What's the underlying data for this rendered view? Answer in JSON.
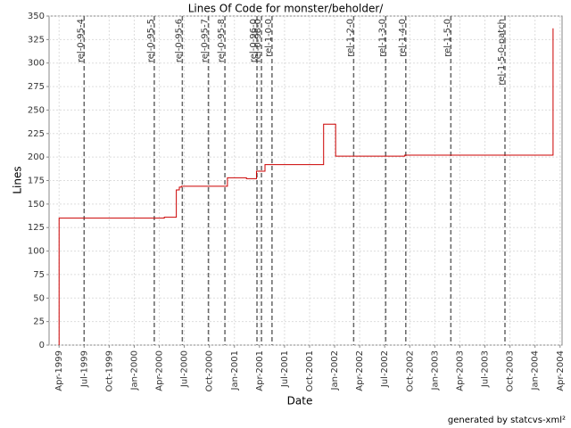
{
  "chart_data": {
    "type": "step-line",
    "title": "Lines Of Code for monster/beholder/",
    "x_label": "Date",
    "y_label": "Lines",
    "footer": "generated by statcvs-xml²",
    "x": [
      1999.25,
      1999.25,
      2000.3,
      2000.42,
      2000.45,
      2000.47,
      2000.93,
      2001.12,
      2001.22,
      2001.305,
      2001.89,
      2002.01,
      2002.7,
      2004.18
    ],
    "values": [
      0,
      135,
      136,
      165,
      168,
      169,
      178,
      177,
      185,
      192,
      235,
      201,
      202,
      337
    ],
    "color": "#cc0000",
    "xlim": [
      1999.15,
      2004.27
    ],
    "xticks": [
      {
        "value": 1999.25,
        "label": "Apr-1999"
      },
      {
        "value": 1999.5,
        "label": "Jul-1999"
      },
      {
        "value": 1999.75,
        "label": "Oct-1999"
      },
      {
        "value": 2000.0,
        "label": "Jan-2000"
      },
      {
        "value": 2000.25,
        "label": "Apr-2000"
      },
      {
        "value": 2000.5,
        "label": "Jul-2000"
      },
      {
        "value": 2000.75,
        "label": "Oct-2000"
      },
      {
        "value": 2001.0,
        "label": "Jan-2001"
      },
      {
        "value": 2001.25,
        "label": "Apr-2001"
      },
      {
        "value": 2001.5,
        "label": "Jul-2001"
      },
      {
        "value": 2001.75,
        "label": "Oct-2001"
      },
      {
        "value": 2002.0,
        "label": "Jan-2002"
      },
      {
        "value": 2002.25,
        "label": "Apr-2002"
      },
      {
        "value": 2002.5,
        "label": "Jul-2002"
      },
      {
        "value": 2002.75,
        "label": "Oct-2002"
      },
      {
        "value": 2003.0,
        "label": "Jan-2003"
      },
      {
        "value": 2003.25,
        "label": "Apr-2003"
      },
      {
        "value": 2003.5,
        "label": "Jul-2003"
      },
      {
        "value": 2003.75,
        "label": "Oct-2003"
      },
      {
        "value": 2004.0,
        "label": "Jan-2004"
      },
      {
        "value": 2004.25,
        "label": "Apr-2004"
      }
    ],
    "ylim": [
      0,
      350
    ],
    "yticks": [
      0,
      25,
      50,
      75,
      100,
      125,
      150,
      175,
      200,
      225,
      250,
      275,
      300,
      325,
      350
    ],
    "grid": true,
    "markers": [
      {
        "label": "rel-0-95-4",
        "x": 1999.5
      },
      {
        "label": "rel-0-95-5",
        "x": 2000.2
      },
      {
        "label": "rel-0-95-6",
        "x": 2000.48
      },
      {
        "label": "rel-0-95-7",
        "x": 2000.74
      },
      {
        "label": "rel-0-95-8",
        "x": 2000.905
      },
      {
        "label": "rel-0-96-0",
        "x": 2001.225
      },
      {
        "label": "rel-0-98-0",
        "x": 2001.27
      },
      {
        "label": "rel-1-0-0",
        "x": 2001.375
      },
      {
        "label": "rel-1-2-0",
        "x": 2002.19
      },
      {
        "label": "rel-1-3-0",
        "x": 2002.51
      },
      {
        "label": "rel-1-4-0",
        "x": 2002.71
      },
      {
        "label": "rel-1-5-0",
        "x": 2003.16
      },
      {
        "label": "rel-1-5-0-patch",
        "x": 2003.7
      }
    ]
  }
}
